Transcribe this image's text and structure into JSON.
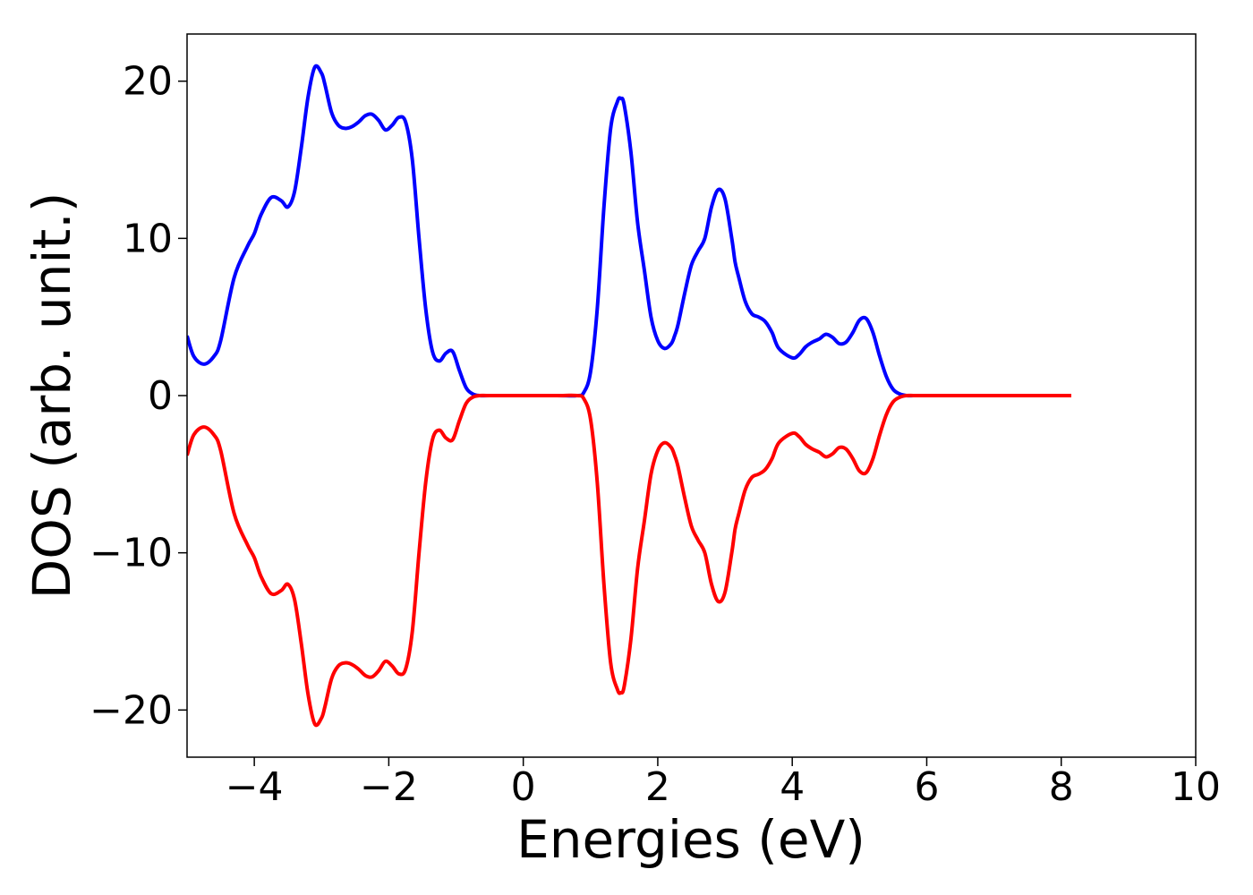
{
  "chart_data": {
    "type": "line",
    "title": "",
    "xlabel": "Energies (eV)",
    "ylabel": "DOS (arb. unit.)",
    "xlim": [
      -5,
      10
    ],
    "ylim": [
      -23,
      23
    ],
    "grid": false,
    "legend": "none",
    "x_ticks": [
      -4,
      -2,
      0,
      2,
      4,
      6,
      8,
      10
    ],
    "x_tick_labels": [
      "−4",
      "−2",
      "0",
      "2",
      "4",
      "6",
      "8",
      "10"
    ],
    "y_ticks": [
      20,
      10,
      0,
      -10,
      -20
    ],
    "y_tick_labels": [
      "20",
      "10",
      "0",
      "−10",
      "−20"
    ],
    "series": [
      {
        "color": "#0000ff",
        "x": [
          -5.0,
          -4.9,
          -4.75,
          -4.6,
          -4.5,
          -4.3,
          -4.1,
          -4.0,
          -3.9,
          -3.75,
          -3.6,
          -3.5,
          -3.4,
          -3.3,
          -3.2,
          -3.1,
          -3.0,
          -2.95,
          -2.85,
          -2.75,
          -2.65,
          -2.55,
          -2.45,
          -2.35,
          -2.25,
          -2.15,
          -2.05,
          -1.95,
          -1.85,
          -1.75,
          -1.65,
          -1.55,
          -1.45,
          -1.35,
          -1.25,
          -1.15,
          -1.05,
          -0.95,
          -0.85,
          -0.75,
          -0.65,
          -0.5,
          0.0,
          0.5,
          0.8,
          0.9,
          1.0,
          1.1,
          1.2,
          1.3,
          1.4,
          1.45,
          1.5,
          1.6,
          1.7,
          1.8,
          1.9,
          2.0,
          2.1,
          2.2,
          2.25,
          2.3,
          2.4,
          2.5,
          2.6,
          2.7,
          2.8,
          2.9,
          3.0,
          3.1,
          3.15,
          3.2,
          3.3,
          3.4,
          3.5,
          3.6,
          3.7,
          3.8,
          4.0,
          4.1,
          4.2,
          4.3,
          4.4,
          4.5,
          4.6,
          4.7,
          4.8,
          4.9,
          5.0,
          5.1,
          5.2,
          5.3,
          5.4,
          5.5,
          5.6,
          5.7,
          5.8,
          5.9,
          6.0,
          6.1,
          7.0,
          8.15
        ],
        "y": [
          3.8,
          2.5,
          2.0,
          2.5,
          3.5,
          7.5,
          9.5,
          10.3,
          11.5,
          12.6,
          12.4,
          12.0,
          13.0,
          15.8,
          19.0,
          20.9,
          20.5,
          19.8,
          18.0,
          17.2,
          17.0,
          17.1,
          17.4,
          17.8,
          17.9,
          17.5,
          16.9,
          17.2,
          17.7,
          17.4,
          15.0,
          10.0,
          5.5,
          2.8,
          2.2,
          2.7,
          2.8,
          1.6,
          0.5,
          0.1,
          0.0,
          0.0,
          0.0,
          0.0,
          0.0,
          0.2,
          1.5,
          5.5,
          12.0,
          17.0,
          18.7,
          18.9,
          18.5,
          15.5,
          11.0,
          8.0,
          5.0,
          3.5,
          3.0,
          3.3,
          3.8,
          4.5,
          6.5,
          8.3,
          9.2,
          10.0,
          12.0,
          13.1,
          12.5,
          10.0,
          8.5,
          7.6,
          6.0,
          5.2,
          5.0,
          4.7,
          4.0,
          3.0,
          2.4,
          2.6,
          3.1,
          3.4,
          3.6,
          3.9,
          3.7,
          3.3,
          3.4,
          4.0,
          4.8,
          4.9,
          4.0,
          2.5,
          1.2,
          0.4,
          0.1,
          0.0,
          0.0,
          0.0,
          0.0,
          0.0,
          0.0,
          0.0
        ]
      },
      {
        "color": "#ff0000",
        "x": [
          -5.0,
          -4.9,
          -4.75,
          -4.6,
          -4.5,
          -4.3,
          -4.1,
          -4.0,
          -3.9,
          -3.75,
          -3.6,
          -3.5,
          -3.4,
          -3.3,
          -3.2,
          -3.1,
          -3.0,
          -2.95,
          -2.85,
          -2.75,
          -2.65,
          -2.55,
          -2.45,
          -2.35,
          -2.25,
          -2.15,
          -2.05,
          -1.95,
          -1.85,
          -1.75,
          -1.65,
          -1.55,
          -1.45,
          -1.35,
          -1.25,
          -1.15,
          -1.05,
          -0.95,
          -0.85,
          -0.75,
          -0.65,
          -0.5,
          0.0,
          0.5,
          0.8,
          0.9,
          1.0,
          1.1,
          1.2,
          1.3,
          1.4,
          1.45,
          1.5,
          1.6,
          1.7,
          1.8,
          1.9,
          2.0,
          2.1,
          2.2,
          2.25,
          2.3,
          2.4,
          2.5,
          2.6,
          2.7,
          2.8,
          2.9,
          3.0,
          3.1,
          3.15,
          3.2,
          3.3,
          3.4,
          3.5,
          3.6,
          3.7,
          3.8,
          4.0,
          4.1,
          4.2,
          4.3,
          4.4,
          4.5,
          4.6,
          4.7,
          4.8,
          4.9,
          5.0,
          5.1,
          5.2,
          5.3,
          5.4,
          5.5,
          5.6,
          5.7,
          5.8,
          5.9,
          6.0,
          6.1,
          7.0,
          8.15
        ],
        "y": [
          -3.8,
          -2.5,
          -2.0,
          -2.5,
          -3.5,
          -7.5,
          -9.5,
          -10.3,
          -11.5,
          -12.6,
          -12.4,
          -12.0,
          -13.0,
          -15.8,
          -19.0,
          -20.9,
          -20.5,
          -19.8,
          -18.0,
          -17.2,
          -17.0,
          -17.1,
          -17.4,
          -17.8,
          -17.9,
          -17.5,
          -16.9,
          -17.2,
          -17.7,
          -17.4,
          -15.0,
          -10.0,
          -5.5,
          -2.8,
          -2.2,
          -2.7,
          -2.8,
          -1.6,
          -0.5,
          -0.1,
          0.0,
          0.0,
          0.0,
          0.0,
          0.0,
          -0.2,
          -1.5,
          -5.5,
          -12.0,
          -17.0,
          -18.7,
          -18.9,
          -18.5,
          -15.5,
          -11.0,
          -8.0,
          -5.0,
          -3.5,
          -3.0,
          -3.3,
          -3.8,
          -4.5,
          -6.5,
          -8.3,
          -9.2,
          -10.0,
          -12.0,
          -13.1,
          -12.5,
          -10.0,
          -8.5,
          -7.6,
          -6.0,
          -5.2,
          -5.0,
          -4.7,
          -4.0,
          -3.0,
          -2.4,
          -2.6,
          -3.1,
          -3.4,
          -3.6,
          -3.9,
          -3.7,
          -3.3,
          -3.4,
          -4.0,
          -4.8,
          -4.9,
          -4.0,
          -2.5,
          -1.2,
          -0.4,
          -0.1,
          0.0,
          0.0,
          0.0,
          0.0,
          0.0,
          0.0,
          0.0
        ]
      }
    ]
  }
}
